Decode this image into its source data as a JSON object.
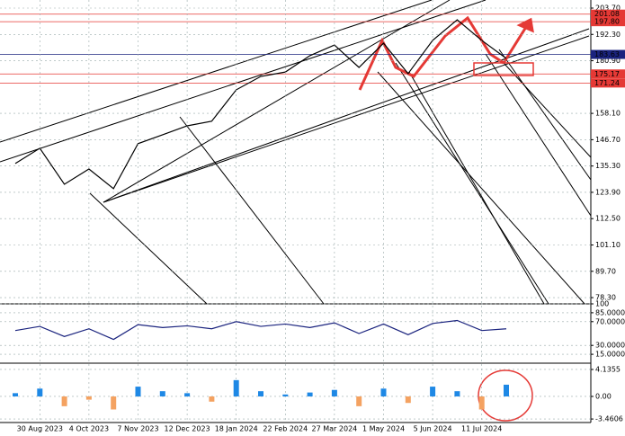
{
  "chart_data": [
    {
      "type": "line",
      "color": "#000000",
      "categories": [
        null,
        "30 Aug 2023",
        null,
        "4 Oct 2023",
        null,
        "7 Nov 2023",
        null,
        "12 Dec 2023",
        null,
        "18 Jan 2024",
        null,
        "22 Feb 2024",
        null,
        "27 Mar 2024",
        null,
        "1 May 2024",
        null,
        "5 Jun 2024",
        null,
        "11 Jul 2024",
        null
      ],
      "values": [
        136.4,
        143,
        127.4,
        134,
        125.5,
        145,
        148.8,
        152.7,
        154.7,
        168.3,
        174.1,
        176,
        183.1,
        187.7,
        178,
        188.5,
        175.3,
        189.7,
        198.6,
        189.7,
        181.9
      ],
      "ylim": [
        75.6,
        207.2
      ],
      "yticks": [
        {
          "value": 203.7,
          "label": "203.70"
        },
        {
          "value": 192.3,
          "label": "192.30"
        },
        {
          "value": 180.9,
          "label": "180.90"
        },
        {
          "value": 158.1,
          "label": "158.10"
        },
        {
          "value": 146.7,
          "label": "146.70"
        },
        {
          "value": 135.3,
          "label": "135.30"
        },
        {
          "value": 123.9,
          "label": "123.90"
        },
        {
          "value": 112.5,
          "label": "112.50"
        },
        {
          "value": 101.1,
          "label": "101.10"
        },
        {
          "value": 89.7,
          "label": "89.70"
        },
        {
          "value": 78.3,
          "label": "78.30"
        }
      ],
      "levels": [
        {
          "value": 201.08,
          "color": "#e53935"
        },
        {
          "value": 197.8,
          "label": "197.80",
          "color": "#e53935"
        },
        {
          "value": 183.63,
          "color": "#1a237e"
        },
        {
          "value": 175.17,
          "color": "#e53935"
        },
        {
          "value": 171.24,
          "color": "#e53935"
        }
      ],
      "grid": true
    },
    {
      "type": "line",
      "color": "#1a237e",
      "values": [
        55,
        62,
        45,
        58,
        40,
        65,
        60,
        63,
        58,
        70,
        62,
        66,
        60,
        68,
        50,
        66,
        48,
        67,
        72,
        55,
        58
      ],
      "ylim": [
        0,
        100
      ],
      "yticks": [
        100,
        {
          "value": 85,
          "label": "85.0000"
        },
        {
          "value": 70,
          "label": "70.0000"
        },
        {
          "value": 30,
          "label": "30.0000"
        },
        {
          "value": 15,
          "label": "15.0000"
        }
      ],
      "grid": true
    },
    {
      "type": "bar",
      "colors": {
        "up": "#1e88e5",
        "down": "#f4a261"
      },
      "values": [
        0.5,
        1.2,
        -1.5,
        -0.5,
        -2,
        1.5,
        0.8,
        0.5,
        -0.8,
        2.5,
        0.8,
        0.3,
        0.6,
        1,
        -1.5,
        1.2,
        -1,
        1.5,
        0.8,
        -2,
        1.8
      ],
      "ylim": [
        -4.0,
        4.96
      ],
      "yticks": [
        4.1355,
        {
          "value": 0,
          "label": "0.00"
        },
        -3.4606
      ],
      "grid": true
    }
  ]
}
